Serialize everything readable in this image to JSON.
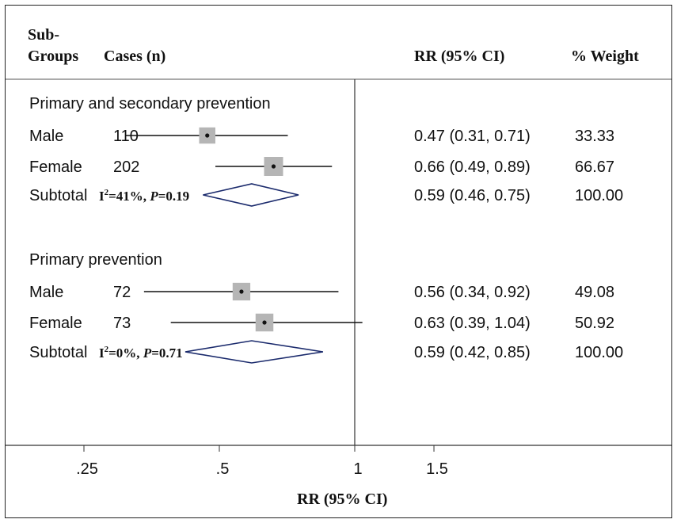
{
  "header": {
    "subgroups_line1": "Sub-",
    "subgroups_line2": "Groups",
    "cases": "Cases (n)",
    "rr": "RR (95% CI)",
    "weight": "% Weight"
  },
  "xaxis_title": "RR (95% CI)",
  "chart_data": {
    "type": "forest",
    "xlabel": "RR (95% CI)",
    "scale": "log",
    "null_line": 1,
    "ticks": [
      ".25",
      ".5",
      "1",
      "1.5"
    ],
    "tick_values": [
      0.25,
      0.5,
      1,
      1.5
    ],
    "groups": [
      {
        "title": "Primary and secondary prevention",
        "rows": [
          {
            "label": "Male",
            "cases": "110",
            "rr": 0.47,
            "lo": 0.31,
            "hi": 0.71,
            "rr_text": "0.47 (0.31, 0.71)",
            "weight": "33.33"
          },
          {
            "label": "Female",
            "cases": "202",
            "rr": 0.66,
            "lo": 0.49,
            "hi": 0.89,
            "rr_text": "0.66 (0.49, 0.89)",
            "weight": "66.67"
          }
        ],
        "subtotal": {
          "label": "Subtotal",
          "i2": "41%",
          "p": "0.19",
          "rr": 0.59,
          "lo": 0.46,
          "hi": 0.75,
          "rr_text": "0.59 (0.46, 0.75)",
          "weight": "100.00"
        }
      },
      {
        "title": "Primary prevention",
        "rows": [
          {
            "label": "Male",
            "cases": "72",
            "rr": 0.56,
            "lo": 0.34,
            "hi": 0.92,
            "rr_text": "0.56 (0.34, 0.92)",
            "weight": "49.08"
          },
          {
            "label": "Female",
            "cases": "73",
            "rr": 0.63,
            "lo": 0.39,
            "hi": 1.04,
            "rr_text": "0.63 (0.39, 1.04)",
            "weight": "50.92"
          }
        ],
        "subtotal": {
          "label": "Subtotal",
          "i2": "0%",
          "p": "0.71",
          "rr": 0.59,
          "lo": 0.42,
          "hi": 0.85,
          "rr_text": "0.59 (0.42, 0.85)",
          "weight": "100.00"
        }
      }
    ]
  }
}
